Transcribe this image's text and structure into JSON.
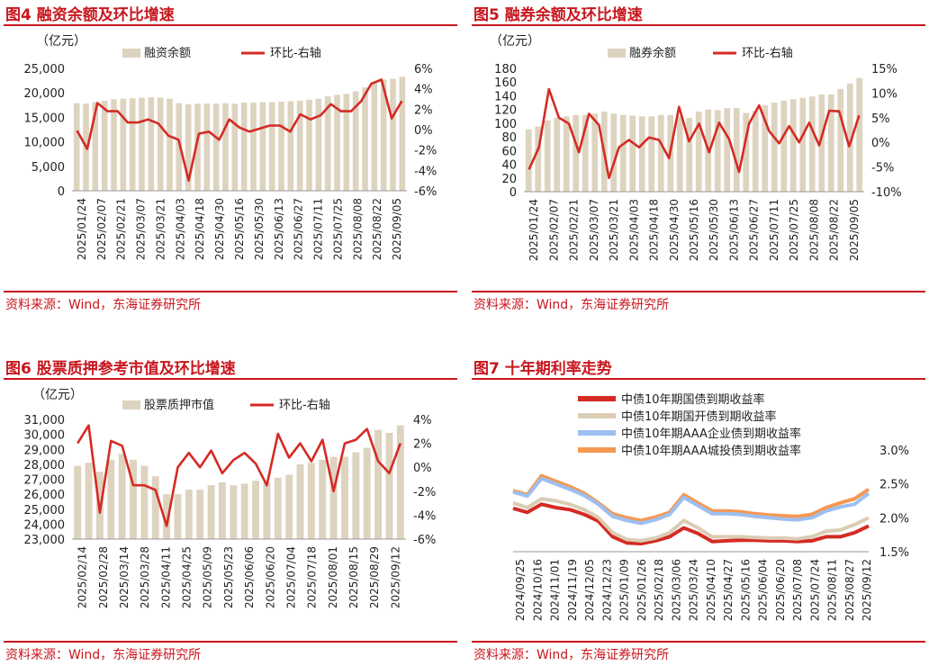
{
  "colors": {
    "accent": "#c8161d",
    "bar": "#ddd3bf",
    "red": "#d42b24",
    "beige": "#dacdb4",
    "blue": "#9dbff0",
    "orange": "#f59852"
  },
  "source_text": "资料来源：Wind，东海证券研究所",
  "chart_data": [
    {
      "type": "bar+line",
      "title": "图4  融资余额及环比增速",
      "unit_label": "（亿元）",
      "legend": [
        "融资余额",
        "环比-右轴"
      ],
      "y_left": {
        "min": 0,
        "max": 25000,
        "ticks": [
          "0",
          "5,000",
          "10,000",
          "15,000",
          "20,000",
          "25,000"
        ]
      },
      "y_right": {
        "min": -6,
        "max": 6,
        "ticks": [
          "-6%",
          "-4%",
          "-2%",
          "0%",
          "2%",
          "4%",
          "6%"
        ]
      },
      "x_tick_labels": [
        "2025/01/24",
        "2025/02/07",
        "2025/02/21",
        "2025/03/07",
        "2025/03/21",
        "2025/04/03",
        "2025/04/18",
        "2025/04/30",
        "2025/05/16",
        "2025/05/30",
        "2025/06/13",
        "2025/06/27",
        "2025/07/11",
        "2025/07/25",
        "2025/08/08",
        "2025/08/22",
        "2025/09/05"
      ],
      "bars": [
        17900,
        17800,
        18100,
        18400,
        18700,
        18800,
        18900,
        19000,
        19100,
        19000,
        18800,
        17900,
        17700,
        17800,
        17800,
        17800,
        17900,
        17800,
        18000,
        18000,
        18100,
        18100,
        18200,
        18300,
        18400,
        18600,
        18800,
        19300,
        19600,
        19800,
        20300,
        21100,
        22200,
        22700,
        22900,
        23300
      ],
      "line": [
        -0.1,
        -1.9,
        2.6,
        1.8,
        1.8,
        0.7,
        0.7,
        1.0,
        0.6,
        -0.6,
        -1.0,
        -5.0,
        -0.4,
        -0.2,
        -1.0,
        1.0,
        0.2,
        -0.2,
        0.1,
        0.4,
        0.4,
        -0.2,
        1.5,
        1.0,
        1.4,
        2.5,
        1.8,
        1.8,
        2.8,
        4.5,
        4.9,
        1.1,
        2.8
      ]
    },
    {
      "type": "bar+line",
      "title": "图5  融券余额及环比增速",
      "unit_label": "（亿元）",
      "legend": [
        "融券余额",
        "环比-右轴"
      ],
      "y_left": {
        "min": 0,
        "max": 180,
        "ticks": [
          "0",
          "20",
          "40",
          "60",
          "80",
          "100",
          "120",
          "140",
          "160",
          "180"
        ]
      },
      "y_right": {
        "min": -10,
        "max": 15,
        "ticks": [
          "-10%",
          "-5%",
          "0%",
          "5%",
          "10%",
          "15%"
        ]
      },
      "x_tick_labels": [
        "2025/01/24",
        "2025/02/07",
        "2025/02/21",
        "2025/03/07",
        "2025/03/21",
        "2025/04/03",
        "2025/04/18",
        "2025/04/30",
        "2025/05/16",
        "2025/05/30",
        "2025/06/13",
        "2025/06/27",
        "2025/07/11",
        "2025/07/25",
        "2025/08/08",
        "2025/08/22",
        "2025/09/05"
      ],
      "bars": [
        91,
        95,
        104,
        108,
        110,
        112,
        112,
        114,
        117,
        114,
        112,
        111,
        110,
        110,
        112,
        112,
        110,
        108,
        117,
        120,
        119,
        122,
        122,
        115,
        118,
        126,
        130,
        133,
        135,
        137,
        139,
        142,
        142,
        150,
        158,
        166
      ],
      "line": [
        -5.5,
        -1.0,
        10.8,
        5.0,
        3.8,
        -2.0,
        5.8,
        3.5,
        -7.2,
        -1.0,
        0.5,
        -1.0,
        1.0,
        0.5,
        -3.2,
        7.2,
        0.2,
        3.8,
        -2.0,
        4.0,
        0.7,
        -6.0,
        3.8,
        7.5,
        2.3,
        -0.2,
        3.3,
        0.0,
        4.0,
        -0.6,
        6.4,
        6.3,
        -0.8,
        5.5
      ]
    },
    {
      "type": "bar+line",
      "title": "图6  股票质押参考市值及环比增速",
      "unit_label": "（亿元）",
      "legend": [
        "股票质押市值",
        "环比-右轴"
      ],
      "y_left": {
        "min": 23000,
        "max": 31000,
        "ticks": [
          "23,000",
          "24,000",
          "25,000",
          "26,000",
          "27,000",
          "28,000",
          "29,000",
          "30,000",
          "31,000"
        ]
      },
      "y_right": {
        "min": -6,
        "max": 4,
        "ticks": [
          "-6%",
          "-4%",
          "-2%",
          "0%",
          "2%",
          "4%"
        ]
      },
      "x_tick_labels": [
        "2025/02/14",
        "2025/02/28",
        "2025/03/14",
        "2025/03/28",
        "2025/04/11",
        "2025/04/25",
        "2025/05/09",
        "2025/05/23",
        "2025/06/06",
        "2025/06/20",
        "2025/07/04",
        "2025/07/18",
        "2025/08/01",
        "2025/08/15",
        "2025/08/29",
        "2025/09/12"
      ],
      "bars": [
        27900,
        28100,
        27500,
        28300,
        28700,
        28300,
        27900,
        27200,
        26000,
        26000,
        26300,
        26300,
        26600,
        26800,
        26600,
        26700,
        26900,
        26800,
        27100,
        27300,
        28000,
        28100,
        28300,
        28500,
        28500,
        28800,
        29100,
        30300,
        30100,
        30600
      ],
      "line": [
        2.0,
        3.5,
        -3.8,
        2.2,
        1.8,
        -1.5,
        -1.5,
        -1.9,
        -4.9,
        0.0,
        1.2,
        0.0,
        1.4,
        -0.5,
        0.6,
        1.2,
        0.3,
        -1.5,
        2.8,
        0.8,
        2.0,
        0.5,
        2.3,
        -2.0,
        2.0,
        2.3,
        3.2,
        0.5,
        -0.5,
        2.0
      ]
    },
    {
      "type": "line",
      "title": "图7  十年期利率走势",
      "y": {
        "min": 1.5,
        "max": 3.0,
        "ticks": [
          "1.5%",
          "2.0%",
          "2.5%",
          "3.0%"
        ]
      },
      "x_tick_labels": [
        "2024/09/25",
        "2024/10/16",
        "2024/11/01",
        "2024/11/19",
        "2024/12/05",
        "2024/12/23",
        "2025/01/09",
        "2025/01/26",
        "2025/02/18",
        "2025/03/06",
        "2025/03/24",
        "2025/04/10",
        "2025/04/27",
        "2025/05/16",
        "2025/06/04",
        "2025/06/20",
        "2025/07/08",
        "2025/07/24",
        "2025/08/11",
        "2025/08/27",
        "2025/09/12"
      ],
      "series": [
        {
          "name": "中债10年期国债到期收益率",
          "values": [
            2.14,
            2.08,
            2.2,
            2.15,
            2.12,
            2.05,
            1.95,
            1.72,
            1.63,
            1.62,
            1.66,
            1.72,
            1.85,
            1.77,
            1.65,
            1.66,
            1.67,
            1.67,
            1.66,
            1.66,
            1.65,
            1.66,
            1.72,
            1.72,
            1.78,
            1.88
          ]
        },
        {
          "name": "中债10年期国开债到期收益率",
          "values": [
            2.22,
            2.15,
            2.28,
            2.25,
            2.2,
            2.12,
            2.0,
            1.78,
            1.68,
            1.66,
            1.7,
            1.78,
            1.96,
            1.85,
            1.72,
            1.72,
            1.72,
            1.71,
            1.7,
            1.7,
            1.69,
            1.72,
            1.8,
            1.82,
            1.9,
            2.0
          ]
        },
        {
          "name": "中债10年期AAA企业债到期收益率",
          "values": [
            2.38,
            2.32,
            2.58,
            2.5,
            2.42,
            2.33,
            2.2,
            2.02,
            1.96,
            1.92,
            1.97,
            2.05,
            2.3,
            2.18,
            2.06,
            2.06,
            2.05,
            2.02,
            2.0,
            1.98,
            1.97,
            2.0,
            2.1,
            2.16,
            2.2,
            2.36
          ]
        },
        {
          "name": "中债10年期AAA城投债到期收益率",
          "values": [
            2.4,
            2.34,
            2.62,
            2.54,
            2.46,
            2.36,
            2.22,
            2.06,
            2.0,
            1.96,
            2.01,
            2.08,
            2.34,
            2.22,
            2.1,
            2.1,
            2.09,
            2.06,
            2.04,
            2.03,
            2.02,
            2.05,
            2.15,
            2.22,
            2.28,
            2.42
          ]
        }
      ]
    }
  ]
}
